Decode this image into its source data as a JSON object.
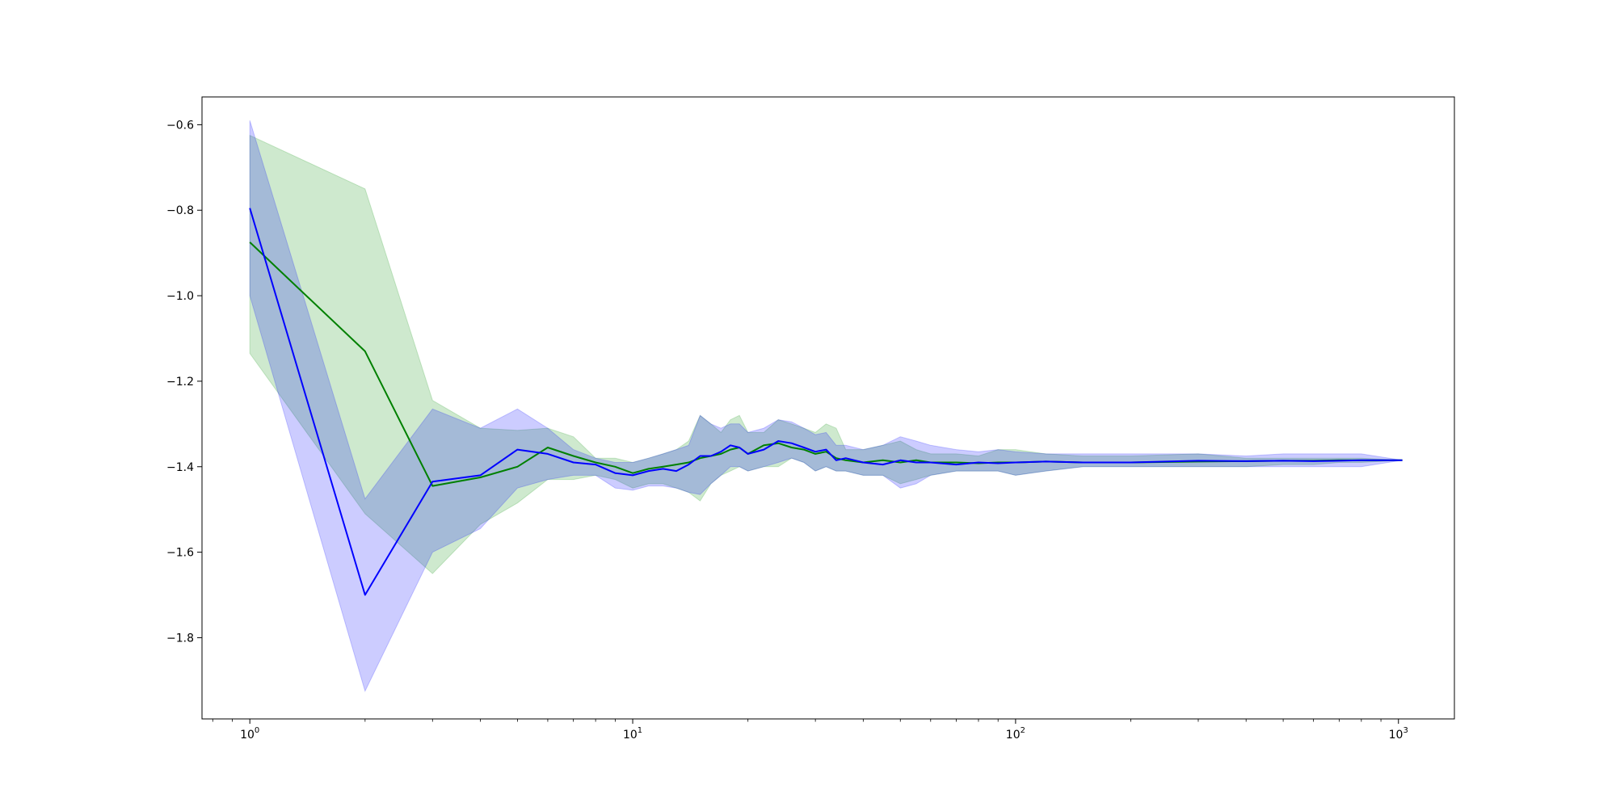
{
  "chart_data": {
    "type": "line",
    "title": "",
    "xlabel": "",
    "ylabel": "",
    "xscale": "log",
    "xlim": [
      0.75,
      1400
    ],
    "ylim": [
      -1.99,
      -0.535
    ],
    "grid": false,
    "x_ticks": [
      {
        "value": 1,
        "base": "10",
        "exp": "0"
      },
      {
        "value": 10,
        "base": "10",
        "exp": "1"
      },
      {
        "value": 100,
        "base": "10",
        "exp": "2"
      },
      {
        "value": 1000,
        "base": "10",
        "exp": "3"
      }
    ],
    "y_ticks": [
      {
        "value": -0.6,
        "label": "−0.6"
      },
      {
        "value": -0.8,
        "label": "−0.8"
      },
      {
        "value": -1.0,
        "label": "−1.0"
      },
      {
        "value": -1.2,
        "label": "−1.2"
      },
      {
        "value": -1.4,
        "label": "−1.4"
      },
      {
        "value": -1.6,
        "label": "−1.6"
      },
      {
        "value": -1.8,
        "label": "−1.8"
      }
    ],
    "series": [
      {
        "color": "#008000",
        "band_color": "#2ca02c",
        "band_opacity": 0.23,
        "x": [
          1,
          2,
          3,
          4,
          5,
          6,
          7,
          8,
          9,
          10,
          11,
          12,
          13,
          14,
          15,
          16,
          17,
          18,
          19,
          20,
          22,
          24,
          26,
          28,
          30,
          32,
          34,
          36,
          40,
          45,
          50,
          55,
          60,
          70,
          80,
          90,
          100,
          120,
          150,
          200,
          300,
          400,
          500,
          600,
          700,
          800,
          1024
        ],
        "mean": [
          -0.875,
          -1.13,
          -1.445,
          -1.425,
          -1.4,
          -1.355,
          -1.375,
          -1.39,
          -1.4,
          -1.415,
          -1.405,
          -1.4,
          -1.395,
          -1.39,
          -1.38,
          -1.375,
          -1.37,
          -1.36,
          -1.355,
          -1.37,
          -1.35,
          -1.345,
          -1.355,
          -1.36,
          -1.37,
          -1.365,
          -1.38,
          -1.385,
          -1.39,
          -1.385,
          -1.39,
          -1.385,
          -1.39,
          -1.39,
          -1.392,
          -1.39,
          -1.39,
          -1.388,
          -1.39,
          -1.39,
          -1.388,
          -1.387,
          -1.386,
          -1.386,
          -1.385,
          -1.385,
          -1.385
        ],
        "upper": [
          -0.625,
          -0.75,
          -1.245,
          -1.31,
          -1.315,
          -1.31,
          -1.33,
          -1.38,
          -1.38,
          -1.39,
          -1.38,
          -1.37,
          -1.36,
          -1.34,
          -1.28,
          -1.3,
          -1.32,
          -1.29,
          -1.28,
          -1.32,
          -1.32,
          -1.29,
          -1.3,
          -1.31,
          -1.32,
          -1.3,
          -1.31,
          -1.36,
          -1.36,
          -1.35,
          -1.34,
          -1.36,
          -1.37,
          -1.37,
          -1.375,
          -1.36,
          -1.36,
          -1.37,
          -1.375,
          -1.375,
          -1.37,
          -1.38,
          -1.38,
          -1.38,
          -1.38,
          -1.38,
          -1.385
        ],
        "lower": [
          -1.135,
          -1.51,
          -1.65,
          -1.535,
          -1.485,
          -1.43,
          -1.43,
          -1.42,
          -1.43,
          -1.45,
          -1.44,
          -1.44,
          -1.45,
          -1.46,
          -1.48,
          -1.44,
          -1.42,
          -1.41,
          -1.4,
          -1.41,
          -1.4,
          -1.4,
          -1.38,
          -1.39,
          -1.41,
          -1.4,
          -1.41,
          -1.41,
          -1.42,
          -1.42,
          -1.44,
          -1.43,
          -1.42,
          -1.41,
          -1.41,
          -1.41,
          -1.42,
          -1.41,
          -1.4,
          -1.4,
          -1.4,
          -1.4,
          -1.395,
          -1.395,
          -1.39,
          -1.39,
          -1.385
        ]
      },
      {
        "color": "#0000ff",
        "band_color": "#0000ff",
        "band_opacity": 0.2,
        "x": [
          1,
          2,
          3,
          4,
          5,
          6,
          7,
          8,
          9,
          10,
          11,
          12,
          13,
          14,
          15,
          16,
          17,
          18,
          19,
          20,
          22,
          24,
          26,
          28,
          30,
          32,
          34,
          36,
          40,
          45,
          50,
          55,
          60,
          70,
          80,
          90,
          100,
          120,
          150,
          200,
          300,
          400,
          500,
          600,
          700,
          800,
          1024
        ],
        "mean": [
          -0.795,
          -1.7,
          -1.435,
          -1.42,
          -1.36,
          -1.37,
          -1.39,
          -1.395,
          -1.415,
          -1.42,
          -1.41,
          -1.405,
          -1.41,
          -1.395,
          -1.375,
          -1.375,
          -1.365,
          -1.35,
          -1.355,
          -1.37,
          -1.36,
          -1.34,
          -1.345,
          -1.355,
          -1.365,
          -1.36,
          -1.385,
          -1.38,
          -1.39,
          -1.395,
          -1.385,
          -1.39,
          -1.39,
          -1.395,
          -1.39,
          -1.392,
          -1.39,
          -1.388,
          -1.39,
          -1.39,
          -1.386,
          -1.387,
          -1.386,
          -1.387,
          -1.386,
          -1.385,
          -1.385
        ],
        "upper": [
          -0.59,
          -1.475,
          -1.265,
          -1.31,
          -1.265,
          -1.31,
          -1.36,
          -1.38,
          -1.39,
          -1.39,
          -1.38,
          -1.37,
          -1.36,
          -1.35,
          -1.28,
          -1.3,
          -1.31,
          -1.3,
          -1.3,
          -1.32,
          -1.31,
          -1.29,
          -1.295,
          -1.31,
          -1.325,
          -1.32,
          -1.35,
          -1.35,
          -1.36,
          -1.35,
          -1.33,
          -1.34,
          -1.35,
          -1.36,
          -1.365,
          -1.36,
          -1.365,
          -1.37,
          -1.37,
          -1.37,
          -1.37,
          -1.375,
          -1.37,
          -1.37,
          -1.37,
          -1.37,
          -1.385
        ],
        "lower": [
          -1.0,
          -1.925,
          -1.6,
          -1.545,
          -1.45,
          -1.43,
          -1.42,
          -1.42,
          -1.45,
          -1.455,
          -1.445,
          -1.445,
          -1.45,
          -1.46,
          -1.465,
          -1.44,
          -1.42,
          -1.4,
          -1.4,
          -1.41,
          -1.4,
          -1.39,
          -1.38,
          -1.39,
          -1.41,
          -1.4,
          -1.41,
          -1.41,
          -1.42,
          -1.42,
          -1.45,
          -1.44,
          -1.42,
          -1.41,
          -1.41,
          -1.41,
          -1.42,
          -1.41,
          -1.4,
          -1.4,
          -1.4,
          -1.4,
          -1.4,
          -1.4,
          -1.4,
          -1.4,
          -1.385
        ]
      }
    ]
  }
}
